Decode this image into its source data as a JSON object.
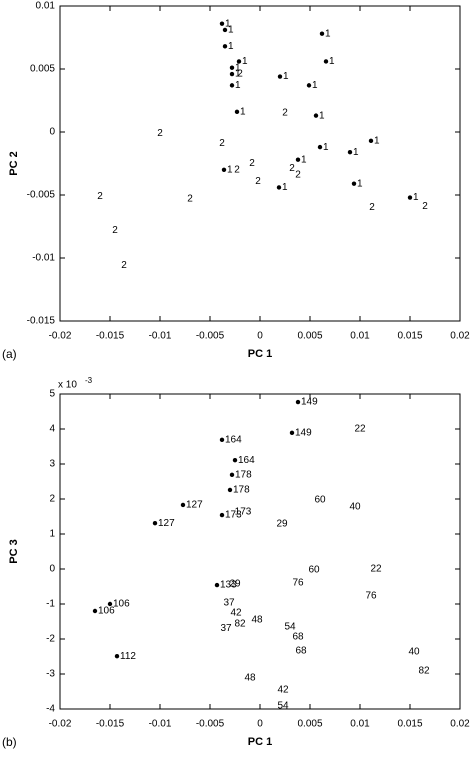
{
  "chart_data": [
    {
      "type": "scatter",
      "panel_label": "(a)",
      "xlabel": "PC 1",
      "ylabel": "PC 2",
      "xlim": [
        -0.02,
        0.02
      ],
      "ylim": [
        -0.015,
        0.01
      ],
      "xticks": [
        -0.02,
        -0.015,
        -0.01,
        -0.005,
        0,
        0.005,
        0.01,
        0.015,
        0.02
      ],
      "yticks": [
        -0.015,
        -0.01,
        -0.005,
        0,
        0.005,
        0.01
      ],
      "series": [
        {
          "name": "1",
          "color": "#000000",
          "marker": "dot",
          "x": [
            -0.0038,
            -0.0035,
            -0.0035,
            0.0062,
            -0.0021,
            0.0066,
            -0.0028,
            -0.0028,
            0.002,
            -0.0028,
            0.0049,
            -0.0023,
            0.0056,
            0.006,
            0.0038,
            0.009,
            0.0111,
            -0.0036,
            0.0019,
            0.0094,
            0.015
          ],
          "values": [
            0.0086,
            0.0081,
            0.0068,
            0.0078,
            0.0056,
            0.0056,
            0.0051,
            0.0046,
            0.0044,
            0.0037,
            0.0037,
            0.0016,
            0.0013,
            -0.0012,
            -0.0022,
            -0.0016,
            -0.0007,
            -0.003,
            -0.0044,
            -0.0041,
            -0.0052
          ]
        },
        {
          "name": "2",
          "color": "#000000",
          "marker": "none",
          "x": [
            -0.01,
            -0.0038,
            0.0025,
            -0.0008,
            0.0032,
            0.0038,
            -0.0023,
            -0.0002,
            -0.016,
            -0.007,
            -0.0145,
            -0.0136,
            0.0112,
            0.0165,
            -0.002
          ],
          "values": [
            -0.0001,
            -0.0009,
            0.0015,
            -0.0025,
            -0.0029,
            -0.0034,
            -0.003,
            -0.0039,
            -0.0051,
            -0.0053,
            -0.0078,
            -0.0106,
            -0.006,
            -0.0059,
            0.0046
          ]
        }
      ]
    },
    {
      "type": "scatter",
      "panel_label": "(b)",
      "xlabel": "PC 1",
      "ylabel": "PC 3",
      "y_scale_label": "x 10",
      "y_scale_exponent": "-3",
      "xlim": [
        -0.02,
        0.02
      ],
      "ylim": [
        -4,
        5
      ],
      "xticks": [
        -0.02,
        -0.015,
        -0.01,
        -0.005,
        0,
        0.005,
        0.01,
        0.015,
        0.02
      ],
      "yticks": [
        -4,
        -3,
        -2,
        -1,
        0,
        1,
        2,
        3,
        4,
        5
      ],
      "series": [
        {
          "color": "#000000",
          "labels": [
            "149",
            "22",
            "164",
            "149",
            "164",
            "178",
            "178",
            "60",
            "40",
            "127",
            "173",
            "173",
            "127",
            "29",
            "60",
            "22",
            "76",
            "76",
            "133",
            "29",
            "106",
            "106",
            "37",
            "42",
            "48",
            "82",
            "37",
            "54",
            "68",
            "68",
            "112",
            "40",
            "82",
            "48",
            "42",
            "54"
          ],
          "dot": [
            true,
            false,
            true,
            true,
            true,
            true,
            true,
            false,
            false,
            true,
            true,
            false,
            true,
            false,
            false,
            false,
            false,
            false,
            true,
            false,
            true,
            true,
            false,
            false,
            false,
            false,
            false,
            false,
            false,
            false,
            true,
            false,
            false,
            false,
            false,
            false
          ],
          "x": [
            0.0038,
            0.01,
            -0.0038,
            0.0032,
            -0.0025,
            -0.0028,
            -0.003,
            0.006,
            0.0095,
            -0.0077,
            -0.0038,
            -0.0017,
            -0.0105,
            0.0022,
            0.0054,
            0.0116,
            0.0038,
            0.0111,
            -0.0043,
            -0.0025,
            -0.015,
            -0.0165,
            -0.0031,
            -0.0024,
            -0.0003,
            -0.002,
            -0.0034,
            0.003,
            0.0038,
            0.0041,
            -0.0143,
            0.0154,
            0.0164,
            -0.001,
            0.0023,
            0.0023
          ],
          "values": [
            4.77,
            4.0,
            3.69,
            3.89,
            3.11,
            2.69,
            2.26,
            1.97,
            1.77,
            1.83,
            1.54,
            1.63,
            1.31,
            1.29,
            -0.03,
            0,
            -0.4,
            -0.77,
            -0.46,
            -0.43,
            -1.0,
            -1.2,
            -0.97,
            -1.26,
            -1.46,
            -1.57,
            -1.69,
            -1.66,
            -1.94,
            -2.34,
            -2.49,
            -2.37,
            -2.91,
            -3.11,
            -3.46,
            -3.91
          ]
        }
      ]
    }
  ]
}
